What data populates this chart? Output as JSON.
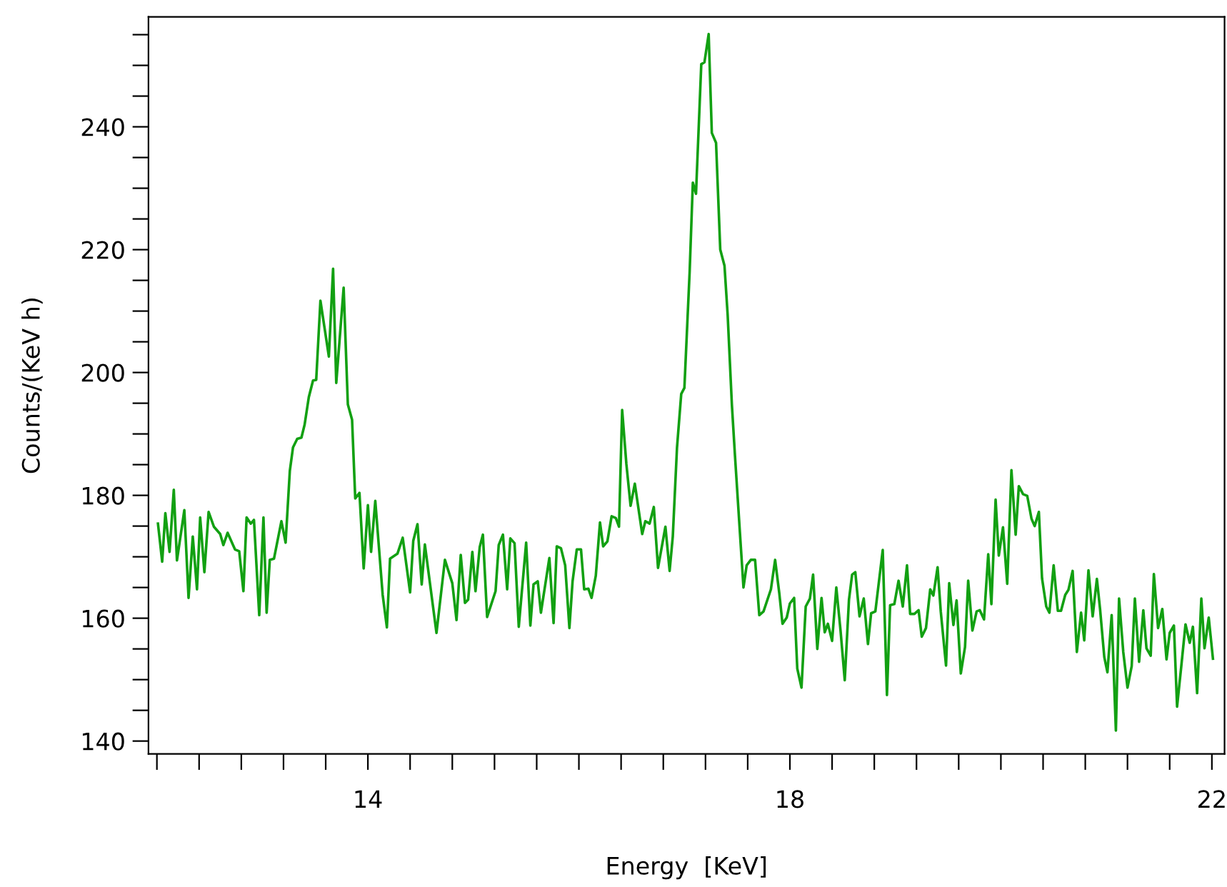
{
  "chart_data": {
    "type": "line",
    "xlabel": "Energy  [KeV]",
    "ylabel": "Counts/(KeV h)",
    "xlim": [
      11.92,
      22.12
    ],
    "ylim": [
      137.9,
      257.9
    ],
    "xticks": [
      {
        "value": 12,
        "label": null
      },
      {
        "value": 12.4,
        "label": null
      },
      {
        "value": 12.8,
        "label": null
      },
      {
        "value": 13.2,
        "label": null
      },
      {
        "value": 13.6,
        "label": null
      },
      14,
      {
        "value": 14.4,
        "label": null
      },
      {
        "value": 14.8,
        "label": null
      },
      {
        "value": 15.2,
        "label": null
      },
      {
        "value": 15.6,
        "label": null
      },
      {
        "value": 16,
        "label": null
      },
      {
        "value": 16.4,
        "label": null
      },
      {
        "value": 16.8,
        "label": null
      },
      {
        "value": 17.2,
        "label": null
      },
      {
        "value": 17.6,
        "label": null
      },
      18,
      {
        "value": 18.4,
        "label": null
      },
      {
        "value": 18.8,
        "label": null
      },
      {
        "value": 19.2,
        "label": null
      },
      {
        "value": 19.6,
        "label": null
      },
      {
        "value": 20,
        "label": null
      },
      {
        "value": 20.4,
        "label": null
      },
      {
        "value": 20.8,
        "label": null
      },
      {
        "value": 21.2,
        "label": null
      },
      {
        "value": 21.6,
        "label": null
      },
      22
    ],
    "yticks": [
      140,
      {
        "value": 145,
        "label": null
      },
      {
        "value": 150,
        "label": null
      },
      {
        "value": 155,
        "label": null
      },
      160,
      {
        "value": 165,
        "label": null
      },
      {
        "value": 170,
        "label": null
      },
      {
        "value": 175,
        "label": null
      },
      180,
      {
        "value": 185,
        "label": null
      },
      {
        "value": 190,
        "label": null
      },
      {
        "value": 195,
        "label": null
      },
      200,
      {
        "value": 205,
        "label": null
      },
      {
        "value": 210,
        "label": null
      },
      {
        "value": 215,
        "label": null
      },
      220,
      {
        "value": 225,
        "label": null
      },
      {
        "value": 230,
        "label": null
      },
      {
        "value": 235,
        "label": null
      },
      240,
      {
        "value": 245,
        "label": null
      },
      {
        "value": 250,
        "label": null
      },
      {
        "value": 255,
        "label": null
      }
    ],
    "grid": false,
    "legend": false,
    "marker": "none",
    "line_style": "solid",
    "series": [
      {
        "color": "#12a012",
        "x": [
          12.01,
          12.05,
          12.08,
          12.12,
          12.16,
          12.19,
          12.26,
          12.3,
          12.34,
          12.38,
          12.41,
          12.45,
          12.49,
          12.54,
          12.6,
          12.63,
          12.67,
          12.74,
          12.78,
          12.82,
          12.85,
          12.89,
          12.92,
          12.97,
          13.01,
          13.04,
          13.07,
          13.11,
          13.18,
          13.22,
          13.26,
          13.29,
          13.33,
          13.37,
          13.4,
          13.44,
          13.48,
          13.51,
          13.55,
          13.63,
          13.67,
          13.7,
          13.77,
          13.81,
          13.85,
          13.88,
          13.92,
          13.96,
          14.0,
          14.03,
          14.07,
          14.14,
          14.18,
          14.21,
          14.28,
          14.33,
          14.4,
          14.43,
          14.47,
          14.51,
          14.54,
          14.65,
          14.73,
          14.8,
          14.84,
          14.88,
          14.92,
          14.95,
          14.99,
          15.02,
          15.06,
          15.09,
          15.13,
          15.21,
          15.24,
          15.28,
          15.32,
          15.35,
          15.39,
          15.43,
          15.5,
          15.54,
          15.57,
          15.61,
          15.64,
          15.72,
          15.76,
          15.79,
          15.83,
          15.87,
          15.91,
          15.94,
          15.98,
          16.02,
          16.05,
          16.09,
          16.12,
          16.16,
          16.2,
          16.23,
          16.27,
          16.31,
          16.35,
          16.38,
          16.41,
          16.45,
          16.49,
          16.53,
          16.6,
          16.63,
          16.67,
          16.71,
          16.75,
          16.82,
          16.86,
          16.89,
          16.93,
          16.97,
          17.0,
          17.05,
          17.08,
          17.11,
          17.16,
          17.19,
          17.23,
          17.26,
          17.3,
          17.34,
          17.38,
          17.41,
          17.45,
          17.48,
          17.52,
          17.56,
          17.59,
          17.63,
          17.67,
          17.71,
          17.75,
          17.82,
          17.86,
          17.9,
          17.93,
          17.97,
          18.0,
          18.04,
          18.07,
          18.11,
          18.15,
          18.19,
          18.22,
          18.26,
          18.3,
          18.33,
          18.36,
          18.4,
          18.44,
          18.48,
          18.52,
          18.56,
          18.59,
          18.62,
          18.66,
          18.7,
          18.74,
          18.77,
          18.81,
          18.88,
          18.92,
          18.95,
          18.99,
          19.03,
          19.07,
          19.11,
          19.14,
          19.18,
          19.22,
          19.25,
          19.29,
          19.33,
          19.36,
          19.4,
          19.43,
          19.48,
          19.51,
          19.55,
          19.58,
          19.62,
          19.66,
          19.69,
          19.73,
          19.77,
          19.8,
          19.84,
          19.88,
          19.91,
          19.95,
          19.98,
          20.02,
          20.06,
          20.1,
          20.14,
          20.17,
          20.21,
          20.25,
          20.29,
          20.32,
          20.36,
          20.39,
          20.43,
          20.46,
          20.5,
          20.54,
          20.57,
          20.61,
          20.64,
          20.68,
          20.72,
          20.76,
          20.79,
          20.83,
          20.87,
          20.91,
          20.94,
          20.98,
          21.01,
          21.05,
          21.09,
          21.12,
          21.16,
          21.2,
          21.24,
          21.27,
          21.31,
          21.35,
          21.38,
          21.42,
          21.45,
          21.49,
          21.53,
          21.57,
          21.6,
          21.64,
          21.67,
          21.71,
          21.75,
          21.79,
          21.82,
          21.86,
          21.9,
          21.93,
          21.97,
          22.01
        ],
        "values": [
          175.4,
          169.2,
          177.1,
          170.8,
          180.9,
          169.4,
          177.6,
          163.3,
          173.3,
          164.7,
          176.4,
          167.5,
          177.3,
          174.9,
          173.7,
          171.9,
          173.9,
          171.2,
          170.9,
          164.4,
          176.4,
          175.4,
          176.0,
          160.5,
          176.4,
          160.9,
          169.5,
          169.7,
          175.8,
          172.3,
          184.0,
          187.8,
          189.2,
          189.4,
          191.5,
          196.0,
          198.7,
          198.8,
          211.7,
          202.6,
          216.9,
          198.3,
          213.8,
          194.8,
          192.3,
          179.5,
          180.4,
          168.1,
          178.4,
          170.8,
          179.1,
          163.8,
          158.5,
          169.7,
          170.5,
          173.1,
          164.2,
          172.6,
          175.3,
          165.5,
          172.0,
          157.6,
          169.5,
          165.7,
          159.7,
          170.3,
          162.5,
          163.0,
          170.8,
          164.4,
          171.6,
          173.6,
          160.2,
          164.4,
          171.9,
          173.6,
          164.7,
          173.0,
          172.2,
          158.6,
          172.3,
          158.8,
          165.5,
          166.0,
          160.9,
          169.8,
          159.2,
          171.7,
          171.4,
          168.6,
          158.4,
          166.0,
          171.2,
          171.2,
          164.7,
          164.8,
          163.3,
          166.9,
          175.6,
          171.7,
          172.5,
          176.6,
          176.3,
          174.9,
          193.9,
          185.1,
          178.3,
          181.9,
          173.7,
          175.8,
          175.4,
          178.1,
          168.2,
          174.9,
          167.7,
          173.3,
          187.8,
          196.5,
          197.5,
          216.5,
          230.9,
          229.1,
          250.2,
          250.5,
          255.1,
          239.0,
          237.4,
          220.0,
          217.4,
          209.4,
          194.8,
          186.3,
          175.6,
          165.0,
          168.6,
          169.5,
          169.5,
          160.5,
          161.1,
          164.7,
          169.5,
          164.0,
          159.1,
          160.1,
          162.4,
          163.3,
          151.8,
          148.7,
          161.9,
          163.2,
          167.1,
          155.0,
          163.3,
          157.7,
          159.1,
          156.3,
          165.0,
          158.0,
          149.9,
          163.0,
          167.1,
          167.5,
          160.3,
          163.2,
          155.8,
          160.8,
          161.1,
          171.1,
          147.5,
          162.1,
          162.3,
          166.1,
          161.9,
          168.6,
          160.7,
          160.7,
          161.3,
          157.0,
          158.4,
          164.7,
          163.7,
          168.3,
          161.1,
          152.3,
          165.7,
          158.9,
          162.9,
          151.0,
          155.3,
          166.1,
          158.0,
          161.1,
          161.3,
          159.8,
          170.4,
          162.3,
          179.3,
          170.2,
          174.8,
          165.6,
          184.1,
          173.6,
          181.5,
          180.2,
          179.9,
          176.2,
          175.0,
          177.3,
          166.5,
          161.9,
          160.9,
          168.6,
          161.2,
          161.2,
          163.8,
          164.6,
          167.7,
          154.5,
          160.9,
          156.4,
          167.8,
          160.3,
          166.4,
          161.5,
          153.7,
          151.2,
          160.5,
          141.7,
          163.2,
          154.5,
          148.7,
          152.2,
          163.2,
          152.9,
          161.3,
          155.1,
          153.9,
          167.2,
          158.4,
          161.5,
          153.3,
          157.6,
          158.8,
          145.6,
          152.2,
          159.0,
          156.0,
          158.6,
          147.8,
          163.2,
          155.1,
          160.1,
          153.4
        ]
      }
    ]
  }
}
